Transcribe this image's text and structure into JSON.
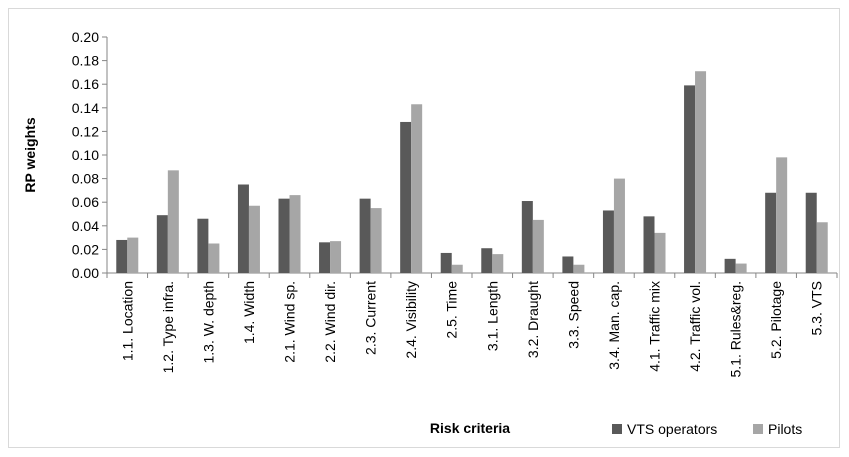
{
  "chart_data": {
    "type": "bar",
    "xlabel": "Risk criteria",
    "ylabel": "RP weights",
    "ylim": [
      0,
      0.2
    ],
    "ytick_step": 0.02,
    "yticks": [
      "0.00",
      "0.02",
      "0.04",
      "0.06",
      "0.08",
      "0.10",
      "0.12",
      "0.14",
      "0.16",
      "0.18",
      "0.20"
    ],
    "grid": false,
    "legend_position": "bottom-right",
    "categories": [
      "1.1. Location",
      "1.2. Type infra.",
      "1.3. W. depth",
      "1.4. Width",
      "2.1. Wind sp.",
      "2.2. Wind dir.",
      "2.3. Current",
      "2.4. Visibility",
      "2.5. Time",
      "3.1. Length",
      "3.2. Draught",
      "3.3. Speed",
      "3.4. Man. cap.",
      "4.1. Traffic mix",
      "4.2. Traffic vol.",
      "5.1. Rules&reg.",
      "5.2. Pilotage",
      "5.3. VTS"
    ],
    "series": [
      {
        "name": "VTS operators",
        "color": "#595959",
        "values": [
          0.028,
          0.049,
          0.046,
          0.075,
          0.063,
          0.026,
          0.063,
          0.128,
          0.017,
          0.021,
          0.061,
          0.014,
          0.053,
          0.048,
          0.159,
          0.012,
          0.068,
          0.068
        ]
      },
      {
        "name": "Pilots",
        "color": "#a6a6a6",
        "values": [
          0.03,
          0.087,
          0.025,
          0.057,
          0.066,
          0.027,
          0.055,
          0.143,
          0.007,
          0.016,
          0.045,
          0.007,
          0.08,
          0.034,
          0.171,
          0.008,
          0.098,
          0.043
        ]
      }
    ]
  }
}
